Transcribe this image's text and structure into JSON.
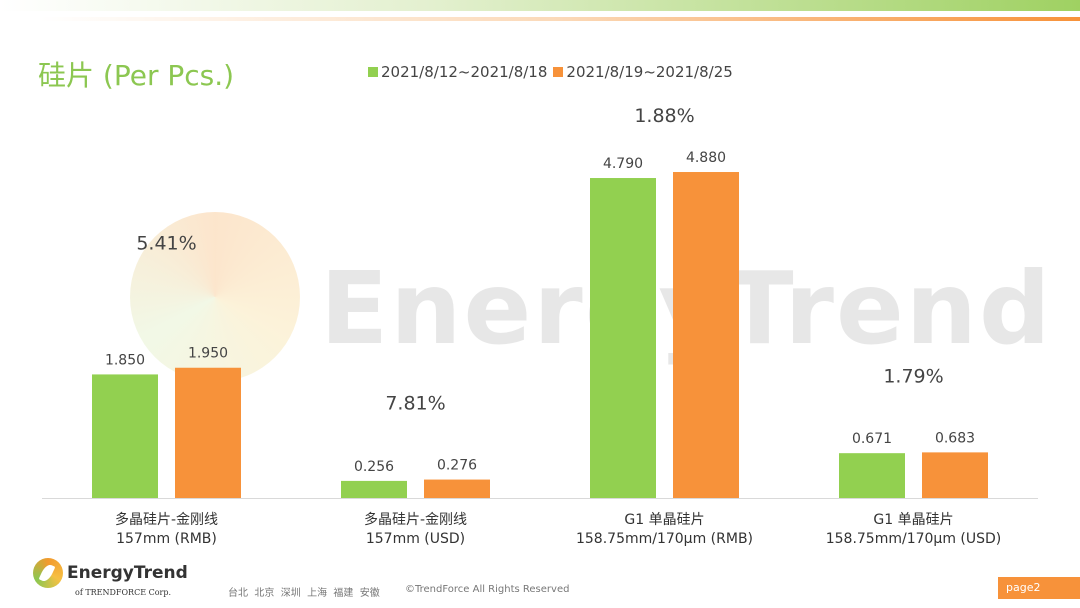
{
  "header": {
    "title": "硅片 (Per Pcs.)"
  },
  "watermark": "EnergyTrend",
  "colors": {
    "series1": "#92d050",
    "series2": "#f7923a",
    "title": "#8cc751"
  },
  "chart_data": {
    "type": "bar",
    "title": "硅片 (Per Pcs.)",
    "legend_position": "top",
    "grid": false,
    "categories": [
      [
        "多晶硅片-金刚线",
        "157mm (RMB)"
      ],
      [
        "多晶硅片-金刚线",
        "157mm (USD)"
      ],
      [
        "G1 单晶硅片",
        "158.75mm/170μm (RMB)"
      ],
      [
        "G1 单晶硅片",
        "158.75mm/170μm (USD)"
      ]
    ],
    "series": [
      {
        "name": "2021/8/12~2021/8/18",
        "values": [
          1.85,
          0.256,
          4.79,
          0.671
        ],
        "labels": [
          "1.850",
          "0.256",
          "4.790",
          "0.671"
        ]
      },
      {
        "name": "2021/8/19~2021/8/25",
        "values": [
          1.95,
          0.276,
          4.88,
          0.683
        ],
        "labels": [
          "1.950",
          "0.276",
          "4.880",
          "0.683"
        ]
      }
    ],
    "change_labels": [
      "5.41%",
      "7.81%",
      "1.88%",
      "1.79%"
    ],
    "ylim": [
      0,
      5
    ]
  },
  "footer": {
    "logo": "EnergyTrend",
    "logo_sub": "of TRENDFORCE Corp.",
    "cities": "台北  北京  深圳  上海  福建  安徽",
    "copyright": "©TrendForce All Rights Reserved",
    "page": "page2"
  }
}
